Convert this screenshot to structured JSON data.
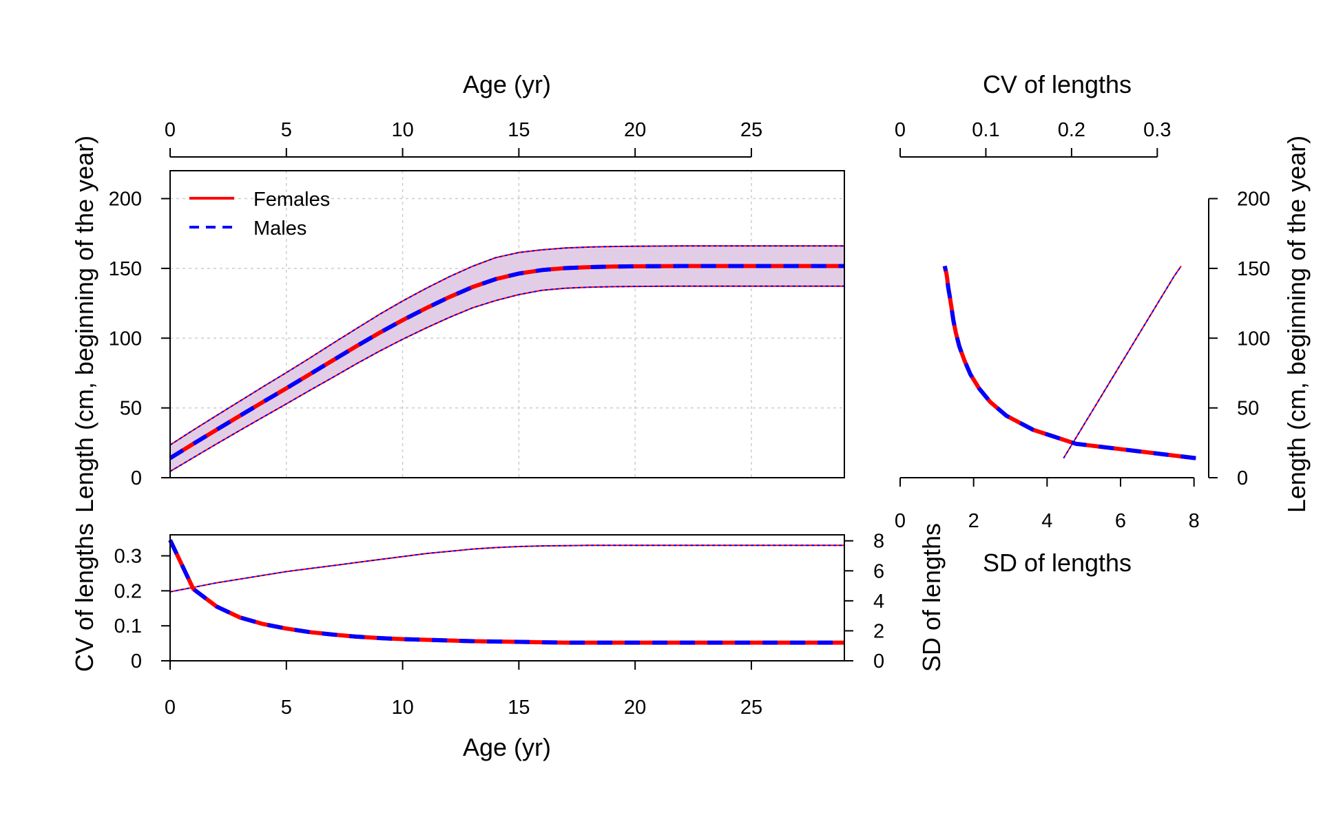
{
  "colors": {
    "female": "#ff0000",
    "male": "#0000ff",
    "band": "#e2cde6",
    "grid": "#cccccc",
    "axis": "#000000"
  },
  "chart_data": [
    {
      "id": "main",
      "type": "line",
      "xlabel_top": "Age (yr)",
      "ylabel": "Length (cm, beginning of the year)",
      "xlim": [
        0,
        29
      ],
      "ylim": [
        0,
        220
      ],
      "xticks": [
        "0",
        "5",
        "10",
        "15",
        "20",
        "25"
      ],
      "yticks": [
        "0",
        "50",
        "100",
        "150",
        "200"
      ],
      "grid": true,
      "legend_position": "top-left",
      "legend": [
        "Females",
        "Males"
      ],
      "x": [
        0,
        1,
        2,
        3,
        4,
        5,
        6,
        7,
        8,
        9,
        10,
        11,
        12,
        13,
        14,
        15,
        16,
        17,
        18,
        19,
        20,
        21,
        22,
        23,
        24,
        25,
        26,
        27,
        28,
        29
      ],
      "series": [
        {
          "name": "Females",
          "values": [
            14,
            24.3,
            34.4,
            44.4,
            54.3,
            64.1,
            74.1,
            84.1,
            94.1,
            103.8,
            112.9,
            121.4,
            129.4,
            136.6,
            142.3,
            146.3,
            148.8,
            150.2,
            150.9,
            151.3,
            151.5,
            151.6,
            151.7,
            151.7,
            151.7,
            151.7,
            151.7,
            151.7,
            151.7,
            151.7
          ]
        },
        {
          "name": "Males",
          "values": [
            14,
            24.3,
            34.4,
            44.4,
            54.3,
            64.1,
            74.1,
            84.1,
            94.1,
            103.8,
            112.9,
            121.4,
            129.4,
            136.6,
            142.3,
            146.3,
            148.8,
            150.2,
            150.9,
            151.3,
            151.5,
            151.6,
            151.7,
            151.7,
            151.7,
            151.7,
            151.7,
            151.7,
            151.7,
            151.7
          ]
        }
      ],
      "band_upper": [
        23.5,
        34.2,
        44.6,
        54.9,
        65.2,
        75.3,
        85.7,
        96.3,
        106.7,
        117,
        126.6,
        135.6,
        144,
        151.5,
        157.7,
        161.4,
        163.3,
        164.6,
        165.3,
        165.7,
        165.9,
        166,
        166.1,
        166.1,
        166.1,
        166.1,
        166.1,
        166.1,
        166.1,
        166.1
      ],
      "band_lower": [
        4.5,
        14.4,
        24.2,
        33.9,
        43.4,
        52.9,
        62.5,
        71.9,
        81.5,
        90.6,
        99.2,
        107.2,
        114.8,
        121.7,
        126.9,
        131.2,
        134.3,
        135.8,
        136.5,
        136.9,
        137.1,
        137.2,
        137.3,
        137.3,
        137.3,
        137.3,
        137.3,
        137.3,
        137.3,
        137.3
      ]
    },
    {
      "id": "cv_sd",
      "type": "line",
      "xlabel": "Age (yr)",
      "ylabel_left": "CV of lengths",
      "ylabel_right": "SD of lengths",
      "xlim": [
        0,
        29
      ],
      "ylim_left": [
        0,
        0.36
      ],
      "ylim_right": [
        0,
        8.4
      ],
      "xticks": [
        "0",
        "5",
        "10",
        "15",
        "20",
        "25"
      ],
      "yticks_left": [
        "0",
        "0.1",
        "0.2",
        "0.3"
      ],
      "yticks_right": [
        "0",
        "2",
        "4",
        "6",
        "8"
      ],
      "x": [
        0,
        1,
        2,
        3,
        4,
        5,
        6,
        7,
        8,
        9,
        10,
        11,
        12,
        13,
        14,
        15,
        16,
        17,
        18,
        19,
        20,
        21,
        22,
        23,
        24,
        25,
        26,
        27,
        28,
        29
      ],
      "cv_series": [
        {
          "name": "Females",
          "values": [
            0.345,
            0.205,
            0.155,
            0.124,
            0.105,
            0.092,
            0.082,
            0.075,
            0.069,
            0.065,
            0.062,
            0.06,
            0.058,
            0.056,
            0.055,
            0.054,
            0.053,
            0.052,
            0.052,
            0.052,
            0.052,
            0.052,
            0.052,
            0.052,
            0.052,
            0.052,
            0.052,
            0.052,
            0.052,
            0.052
          ]
        },
        {
          "name": "Males",
          "values": [
            0.345,
            0.205,
            0.155,
            0.124,
            0.105,
            0.092,
            0.082,
            0.075,
            0.069,
            0.065,
            0.062,
            0.06,
            0.058,
            0.056,
            0.055,
            0.054,
            0.053,
            0.052,
            0.052,
            0.052,
            0.052,
            0.052,
            0.052,
            0.052,
            0.052,
            0.052,
            0.052,
            0.052,
            0.052,
            0.052
          ]
        }
      ],
      "sd_series": [
        {
          "name": "Females",
          "values": [
            4.6,
            4.9,
            5.2,
            5.45,
            5.7,
            5.95,
            6.15,
            6.35,
            6.55,
            6.75,
            6.95,
            7.15,
            7.3,
            7.45,
            7.55,
            7.62,
            7.66,
            7.68,
            7.7,
            7.7,
            7.7,
            7.7,
            7.7,
            7.7,
            7.7,
            7.7,
            7.7,
            7.7,
            7.7,
            7.7
          ]
        },
        {
          "name": "Males",
          "values": [
            4.6,
            4.9,
            5.2,
            5.45,
            5.7,
            5.95,
            6.15,
            6.35,
            6.55,
            6.75,
            6.95,
            7.15,
            7.3,
            7.45,
            7.55,
            7.62,
            7.66,
            7.68,
            7.7,
            7.7,
            7.7,
            7.7,
            7.7,
            7.7,
            7.7,
            7.7,
            7.7,
            7.7,
            7.7,
            7.7
          ]
        }
      ]
    },
    {
      "id": "variability",
      "type": "line",
      "xlabel_top": "CV of lengths",
      "xlabel_bottom": "SD of lengths",
      "ylabel_right": "Length (cm, beginning of the year)",
      "xlim_top": [
        0,
        0.36
      ],
      "xlim_bottom": [
        0,
        8.4
      ],
      "ylim": [
        0,
        220
      ],
      "xticks_top": [
        "0",
        "0.1",
        "0.2",
        "0.3"
      ],
      "xticks_bottom": [
        "0",
        "2",
        "4",
        "6",
        "8"
      ],
      "yticks": [
        "0",
        "50",
        "100",
        "150",
        "200"
      ],
      "cv_vs_length": {
        "cv": [
          0.345,
          0.205,
          0.155,
          0.124,
          0.105,
          0.092,
          0.082,
          0.075,
          0.069,
          0.065,
          0.062,
          0.06,
          0.058,
          0.056,
          0.055,
          0.054,
          0.053,
          0.052
        ],
        "length": [
          14,
          24.3,
          34.4,
          44.4,
          54.3,
          64.1,
          74.1,
          84.1,
          94.1,
          103.8,
          112.9,
          121.4,
          129.4,
          136.6,
          142.3,
          146.3,
          148.8,
          151.7
        ]
      },
      "sd_vs_length": {
        "sd": [
          4.45,
          4.75,
          5.05,
          5.35,
          5.65,
          5.95,
          6.25,
          6.55,
          6.85,
          7.15,
          7.45,
          7.65
        ],
        "length": [
          14,
          27,
          40,
          53,
          66,
          79,
          92,
          105,
          118,
          131,
          144,
          151.7
        ]
      }
    }
  ]
}
